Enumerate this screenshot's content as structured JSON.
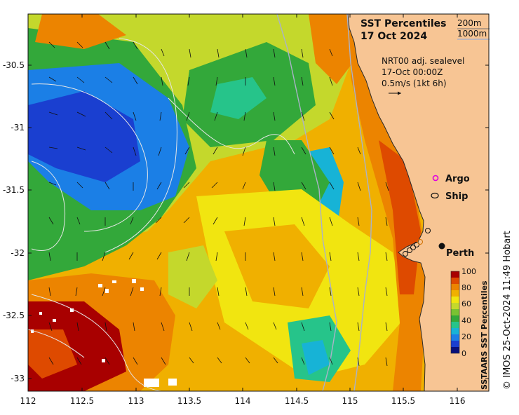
{
  "title": {
    "line1": "SST Percentiles",
    "line2": "17 Oct 2024"
  },
  "contour_legend": {
    "c200": "200m",
    "c1000": "1000m"
  },
  "current_info": {
    "line1": "NRT00 adj. sealevel",
    "line2": "17-Oct 00:00Z",
    "line3": "0.5m/s (1kt 6h)"
  },
  "symbols": {
    "argo": "Argo",
    "ship": "Ship",
    "city": "Perth"
  },
  "axes": {
    "x_ticks": [
      "112",
      "112.5",
      "113",
      "113.5",
      "114",
      "114.5",
      "115",
      "115.5",
      "116"
    ],
    "y_ticks": [
      "-30.5",
      "-31",
      "-31.5",
      "-32",
      "-32.5",
      "-33"
    ]
  },
  "colorbar": {
    "label": "SSTAARS SST Percentiles",
    "ticks": [
      "100",
      "80",
      "60",
      "40",
      "20",
      "0"
    ],
    "colors": [
      "#08107a",
      "#1a3fd0",
      "#1b7fe6",
      "#17b3d6",
      "#26c48a",
      "#33a83a",
      "#7ac232",
      "#c4d82c",
      "#f1e510",
      "#f0b000",
      "#ec8400",
      "#de4a00",
      "#a80000"
    ]
  },
  "credit": "© IMOS 25-Oct-2024 11:49 Hobart",
  "colors": {
    "land": "#f7c594",
    "coast": "#2a2a2a",
    "contour": "#d9d9d9"
  }
}
